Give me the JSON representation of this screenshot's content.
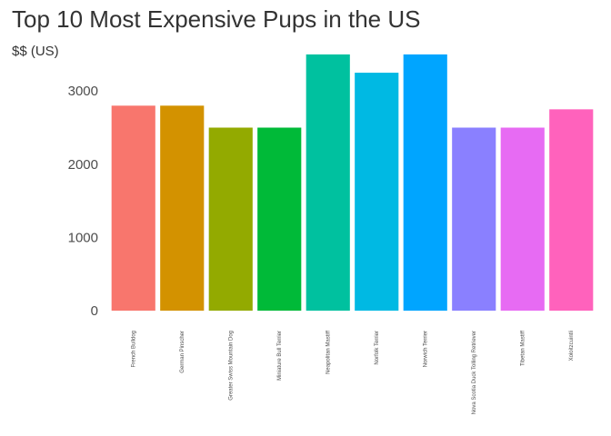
{
  "chart_data": {
    "type": "bar",
    "title": "Top 10 Most Expensive Pups in the US",
    "ylabel": "$$ (US)",
    "xlabel": "",
    "categories": [
      "French Bulldog",
      "German Pinscher",
      "Greater Swiss Mountain Dog",
      "Miniature Bull Terrier",
      "Neapolitan Mastiff",
      "Norfolk Terrier",
      "Norwich Terrier",
      "Nova Scotia Duck Tolling Retriever",
      "Tibetan Mastiff",
      "Xoloitzcuintli"
    ],
    "values": [
      2800,
      2800,
      2500,
      2500,
      3500,
      3250,
      3500,
      2500,
      2500,
      2750
    ],
    "colors": [
      "#F8766D",
      "#D39200",
      "#93AA00",
      "#00BA38",
      "#00C19F",
      "#00B9E3",
      "#00A5FF",
      "#8A80FF",
      "#E76BF3",
      "#FF62BC"
    ],
    "ylim": [
      0,
      3500
    ],
    "yticks": [
      0,
      1000,
      2000,
      3000
    ],
    "grid": false,
    "legend": "none"
  }
}
